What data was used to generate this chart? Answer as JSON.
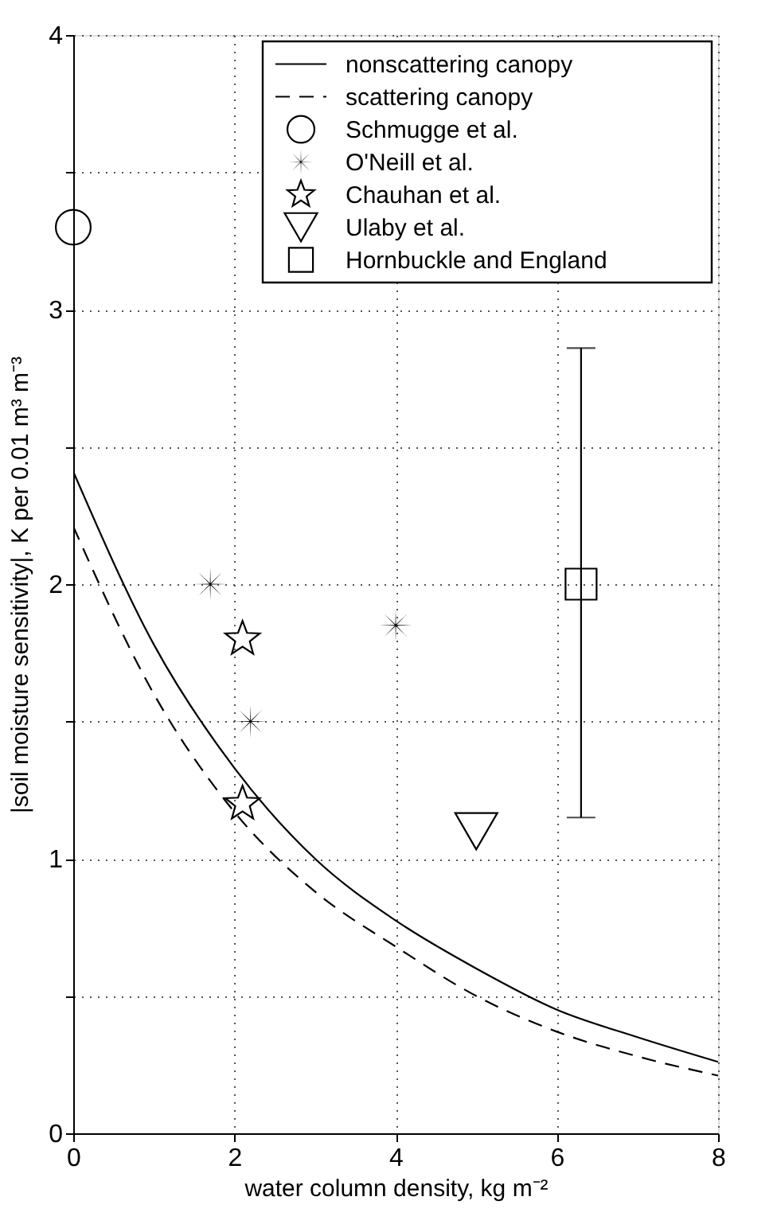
{
  "chart_data": {
    "type": "line",
    "xlabel": "water column density, kg m⁻²",
    "ylabel": "|soil moisture sensitivity|, K per 0.01 m³ m⁻³",
    "xlim": [
      0,
      8
    ],
    "xticks": [
      0,
      2,
      4,
      6,
      8
    ],
    "ylim": [
      0,
      4
    ],
    "yticks": [
      0,
      {
        "value": 0.5,
        "label": null
      },
      1,
      {
        "value": 1.5,
        "label": null
      },
      2,
      {
        "value": 2.5,
        "label": null
      },
      3,
      {
        "value": 3.5,
        "label": null
      },
      4
    ],
    "grid": true,
    "legend": "top right",
    "series": [
      {
        "name": "nonscattering canopy",
        "type": "line",
        "color": "#000000",
        "line_style": "solid",
        "x": [
          0,
          1,
          2,
          3,
          4,
          5,
          6,
          7,
          8
        ],
        "values": [
          2.41,
          1.78,
          1.33,
          1.0,
          0.775,
          0.6,
          0.45,
          0.35,
          0.26
        ]
      },
      {
        "name": "scattering canopy",
        "type": "line",
        "color": "#000000",
        "line_style": "dashed",
        "x": [
          0,
          1,
          2,
          3,
          4,
          5,
          6,
          7,
          8
        ],
        "values": [
          2.21,
          1.6,
          1.17,
          0.88,
          0.68,
          0.5,
          0.37,
          0.28,
          0.21
        ]
      },
      {
        "name": "Schmugge et al.",
        "type": "scatter",
        "color": "#000000",
        "marker": "circle",
        "x": [
          0
        ],
        "values": [
          3.3
        ]
      },
      {
        "name": "O'Neill et al.",
        "type": "scatter",
        "color": "#000000",
        "marker": "cross",
        "x": [
          1.7,
          2.2,
          4.0
        ],
        "values": [
          2.0,
          1.5,
          1.85
        ]
      },
      {
        "name": "Chauhan et al.",
        "type": "scatter",
        "color": "#000000",
        "marker": "star",
        "x": [
          2.1,
          2.1
        ],
        "values": [
          1.8,
          1.2
        ]
      },
      {
        "name": "Ulaby et al.",
        "type": "scatter",
        "color": "#000000",
        "marker": "triangle",
        "x": [
          5.0
        ],
        "values": [
          1.1
        ]
      },
      {
        "name": "Hornbuckle and England",
        "type": "scatter",
        "color": "#000000",
        "marker": "square",
        "x": [
          6.3
        ],
        "values": [
          2.0
        ],
        "errors": [
          [
            1.15,
            2.86
          ]
        ]
      }
    ]
  }
}
